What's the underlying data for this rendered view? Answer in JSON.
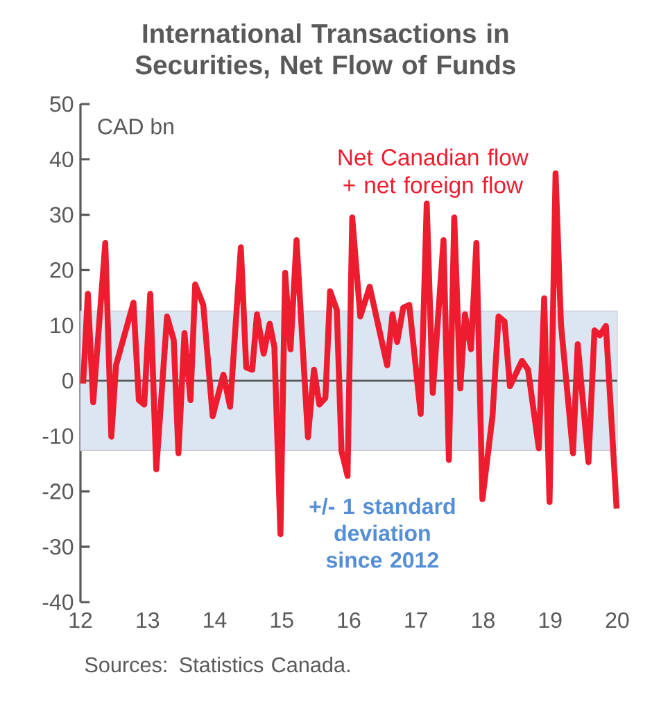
{
  "chart_data": {
    "type": "line",
    "title": "International Transactions in Securities, Net Flow of Funds",
    "ylabel": "CAD bn",
    "x": [
      12.04,
      12.11,
      12.19,
      12.37,
      12.46,
      12.53,
      12.79,
      12.87,
      12.95,
      13.04,
      13.13,
      13.29,
      13.39,
      13.46,
      13.55,
      13.64,
      13.71,
      13.83,
      13.97,
      14.13,
      14.23,
      14.39,
      14.47,
      14.56,
      14.63,
      14.73,
      14.82,
      14.89,
      14.98,
      15.05,
      15.13,
      15.22,
      15.39,
      15.48,
      15.56,
      15.65,
      15.72,
      15.82,
      15.89,
      15.98,
      16.05,
      16.17,
      16.31,
      16.57,
      16.65,
      16.72,
      16.81,
      16.9,
      17.07,
      17.16,
      17.25,
      17.41,
      17.49,
      17.57,
      17.66,
      17.73,
      17.82,
      17.9,
      17.99,
      18.14,
      18.23,
      18.32,
      18.4,
      18.58,
      18.67,
      18.83,
      18.91,
      18.99,
      19.08,
      19.16,
      19.34,
      19.41,
      19.57,
      19.66,
      19.74,
      19.83,
      19.99
    ],
    "series": [
      {
        "name": "Net Canadian flow + net foreign flow",
        "color": "#ed1c2e",
        "values": [
          -0.5,
          15.7,
          -3.9,
          24.9,
          -10.1,
          2.8,
          14.1,
          -3.5,
          -4.3,
          15.7,
          -16,
          11.6,
          7.4,
          -13.1,
          8.6,
          -3.5,
          17.4,
          13.7,
          -6.4,
          1.1,
          -4.7,
          24.1,
          2.4,
          2.0,
          12,
          4.9,
          10.3,
          6.1,
          -27.7,
          19.5,
          5.7,
          25.4,
          -10.2,
          2,
          -4.3,
          -3.1,
          16.2,
          12.8,
          -12.7,
          -17.2,
          29.5,
          11.6,
          17,
          2.8,
          12,
          7,
          13.2,
          13.7,
          -6,
          32,
          -2.2,
          25.4,
          -14.3,
          29.5,
          -1.4,
          12,
          5.7,
          24.9,
          -21.4,
          -6.4,
          11.6,
          10.7,
          -1,
          3.6,
          2,
          -12.2,
          14.9,
          -21.9,
          37.5,
          10.3,
          -13.1,
          6.6,
          -14.7,
          9.1,
          8.2,
          9.9,
          -23.1
        ]
      }
    ],
    "xlim": [
      12,
      20
    ],
    "xticks": [
      12,
      13,
      14,
      15,
      16,
      17,
      18,
      19,
      20
    ],
    "ylim": [
      -40,
      50
    ],
    "yticks": [
      -40,
      -30,
      -20,
      -10,
      0,
      10,
      20,
      30,
      40,
      50
    ],
    "bands": [
      {
        "axis": "y",
        "from": -12.6,
        "to": 12.6,
        "label": "+/- 1 standard deviation since 2012",
        "color": "#dce6f2"
      }
    ],
    "ref_lines": [
      {
        "axis": "y",
        "value": 0,
        "color": "#595959"
      }
    ],
    "annotations": [
      "Sources: Statistics Canada."
    ]
  }
}
